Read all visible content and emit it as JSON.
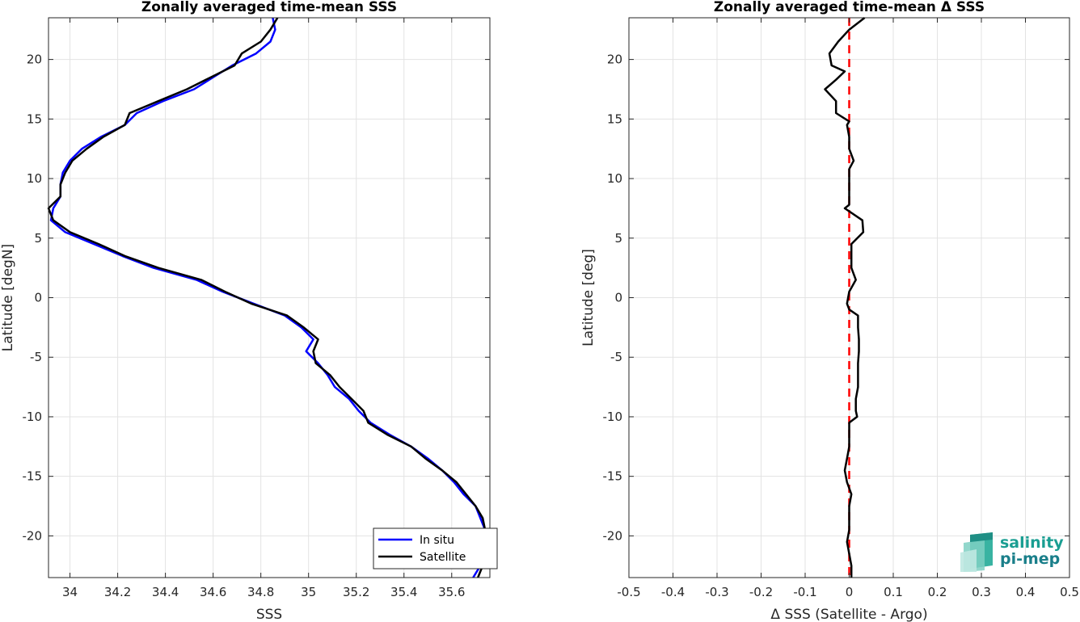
{
  "chart_data": [
    {
      "type": "line",
      "title": "Zonally averaged time-mean SSS",
      "xlabel": "SSS",
      "ylabel": "Latitude [degN]",
      "xlim": [
        33.91,
        35.76
      ],
      "ylim": [
        -23.5,
        23.5
      ],
      "xticks": [
        "34",
        "34.2",
        "34.4",
        "34.6",
        "34.8",
        "35",
        "35.2",
        "35.4",
        "35.6"
      ],
      "yticks": [
        "20",
        "15",
        "10",
        "5",
        "0",
        "-5",
        "-10",
        "-15",
        "-20"
      ],
      "grid": true,
      "legend_position": "bottom-right",
      "series": [
        {
          "name": "In situ",
          "color": "#0000ff",
          "points": [
            [
              34.85,
              23.5
            ],
            [
              34.86,
              22.5
            ],
            [
              34.84,
              21.5
            ],
            [
              34.78,
              20.5
            ],
            [
              34.68,
              19.5
            ],
            [
              34.6,
              18.5
            ],
            [
              34.52,
              17.5
            ],
            [
              34.39,
              16.5
            ],
            [
              34.28,
              15.5
            ],
            [
              34.23,
              14.5
            ],
            [
              34.13,
              13.5
            ],
            [
              34.05,
              12.5
            ],
            [
              34.0,
              11.5
            ],
            [
              33.97,
              10.5
            ],
            [
              33.96,
              9.5
            ],
            [
              33.96,
              8.5
            ],
            [
              33.93,
              7.5
            ],
            [
              33.92,
              6.5
            ],
            [
              33.98,
              5.5
            ],
            [
              34.1,
              4.5
            ],
            [
              34.22,
              3.5
            ],
            [
              34.35,
              2.5
            ],
            [
              34.53,
              1.5
            ],
            [
              34.64,
              0.5
            ],
            [
              34.77,
              -0.5
            ],
            [
              34.9,
              -1.5
            ],
            [
              34.97,
              -2.5
            ],
            [
              35.02,
              -3.5
            ],
            [
              34.99,
              -4.5
            ],
            [
              35.04,
              -5.5
            ],
            [
              35.08,
              -6.5
            ],
            [
              35.11,
              -7.5
            ],
            [
              35.17,
              -8.5
            ],
            [
              35.21,
              -9.5
            ],
            [
              35.26,
              -10.5
            ],
            [
              35.34,
              -11.5
            ],
            [
              35.43,
              -12.5
            ],
            [
              35.5,
              -13.5
            ],
            [
              35.56,
              -14.5
            ],
            [
              35.61,
              -15.5
            ],
            [
              35.65,
              -16.5
            ],
            [
              35.7,
              -17.5
            ],
            [
              35.72,
              -18.5
            ],
            [
              35.74,
              -19.5
            ],
            [
              35.75,
              -20.5
            ],
            [
              35.74,
              -21.5
            ],
            [
              35.72,
              -22.5
            ],
            [
              35.69,
              -23.5
            ]
          ]
        },
        {
          "name": "Satellite",
          "color": "#000000",
          "points": [
            [
              34.87,
              23.5
            ],
            [
              34.84,
              22.5
            ],
            [
              34.8,
              21.5
            ],
            [
              34.72,
              20.5
            ],
            [
              34.69,
              19.5
            ],
            [
              34.59,
              18.5
            ],
            [
              34.49,
              17.5
            ],
            [
              34.37,
              16.5
            ],
            [
              34.25,
              15.5
            ],
            [
              34.23,
              14.5
            ],
            [
              34.14,
              13.5
            ],
            [
              34.07,
              12.5
            ],
            [
              34.01,
              11.5
            ],
            [
              33.98,
              10.5
            ],
            [
              33.96,
              9.5
            ],
            [
              33.96,
              8.5
            ],
            [
              33.91,
              7.5
            ],
            [
              33.93,
              6.5
            ],
            [
              34.0,
              5.5
            ],
            [
              34.12,
              4.5
            ],
            [
              34.23,
              3.5
            ],
            [
              34.37,
              2.5
            ],
            [
              34.55,
              1.5
            ],
            [
              34.65,
              0.5
            ],
            [
              34.76,
              -0.5
            ],
            [
              34.91,
              -1.5
            ],
            [
              34.98,
              -2.5
            ],
            [
              35.04,
              -3.5
            ],
            [
              35.02,
              -4.5
            ],
            [
              35.03,
              -5.5
            ],
            [
              35.09,
              -6.5
            ],
            [
              35.13,
              -7.5
            ],
            [
              35.18,
              -8.5
            ],
            [
              35.23,
              -9.5
            ],
            [
              35.25,
              -10.5
            ],
            [
              35.33,
              -11.5
            ],
            [
              35.43,
              -12.5
            ],
            [
              35.49,
              -13.5
            ],
            [
              35.56,
              -14.5
            ],
            [
              35.62,
              -15.5
            ],
            [
              35.66,
              -16.5
            ],
            [
              35.7,
              -17.5
            ],
            [
              35.73,
              -18.5
            ],
            [
              35.74,
              -19.5
            ],
            [
              35.74,
              -20.5
            ],
            [
              35.75,
              -21.5
            ],
            [
              35.73,
              -22.5
            ],
            [
              35.71,
              -23.5
            ]
          ]
        }
      ]
    },
    {
      "type": "line",
      "title": "Zonally averaged time-mean Δ SSS",
      "xlabel": "Δ SSS (Satellite - Argo)",
      "ylabel": "Latitude [deg]",
      "xlim": [
        -0.5,
        0.5
      ],
      "ylim": [
        -23.5,
        23.5
      ],
      "xticks": [
        "-0.5",
        "-0.4",
        "-0.3",
        "-0.2",
        "-0.1",
        "0",
        "0.1",
        "0.2",
        "0.3",
        "0.4",
        "0.5"
      ],
      "yticks": [
        "20",
        "15",
        "10",
        "5",
        "0",
        "-5",
        "-10",
        "-15",
        "-20"
      ],
      "grid": true,
      "reference_line": {
        "x": 0,
        "color": "#ff0000",
        "style": "dashed"
      },
      "series": [
        {
          "color": "#000000",
          "points": [
            [
              0.035,
              23.5
            ],
            [
              0.0,
              22.5
            ],
            [
              -0.025,
              21.5
            ],
            [
              -0.045,
              20.5
            ],
            [
              -0.04,
              19.5
            ],
            [
              -0.01,
              19.0
            ],
            [
              -0.03,
              18.3
            ],
            [
              -0.055,
              17.5
            ],
            [
              -0.03,
              16.5
            ],
            [
              -0.03,
              15.5
            ],
            [
              0.0,
              14.8
            ],
            [
              -0.005,
              14.5
            ],
            [
              0.0,
              13.5
            ],
            [
              0.0,
              12.5
            ],
            [
              0.01,
              11.5
            ],
            [
              0.0,
              10.8
            ],
            [
              0.0,
              10.5
            ],
            [
              0.0,
              9.5
            ],
            [
              0.0,
              8.5
            ],
            [
              0.0,
              7.8
            ],
            [
              -0.01,
              7.5
            ],
            [
              0.03,
              6.5
            ],
            [
              0.032,
              5.5
            ],
            [
              0.005,
              4.5
            ],
            [
              0.005,
              3.5
            ],
            [
              0.005,
              2.5
            ],
            [
              0.015,
              1.5
            ],
            [
              0.0,
              0.5
            ],
            [
              -0.005,
              -0.5
            ],
            [
              0.0,
              -1.0
            ],
            [
              0.02,
              -1.5
            ],
            [
              0.02,
              -2.5
            ],
            [
              0.022,
              -3.5
            ],
            [
              0.022,
              -4.5
            ],
            [
              0.02,
              -5.5
            ],
            [
              0.02,
              -6.5
            ],
            [
              0.02,
              -7.5
            ],
            [
              0.015,
              -8.5
            ],
            [
              0.015,
              -9.5
            ],
            [
              0.018,
              -10.0
            ],
            [
              0.0,
              -10.5
            ],
            [
              0.0,
              -11.5
            ],
            [
              0.0,
              -12.5
            ],
            [
              -0.005,
              -13.5
            ],
            [
              -0.01,
              -14.5
            ],
            [
              -0.005,
              -15.5
            ],
            [
              0.005,
              -16.5
            ],
            [
              0.0,
              -17.5
            ],
            [
              0.0,
              -18.5
            ],
            [
              0.0,
              -19.5
            ],
            [
              -0.005,
              -20.5
            ],
            [
              0.0,
              -21.5
            ],
            [
              0.005,
              -22.5
            ],
            [
              0.005,
              -23.5
            ]
          ]
        }
      ]
    }
  ],
  "logo": {
    "line1": "salinity",
    "line2": "pi-mep"
  }
}
